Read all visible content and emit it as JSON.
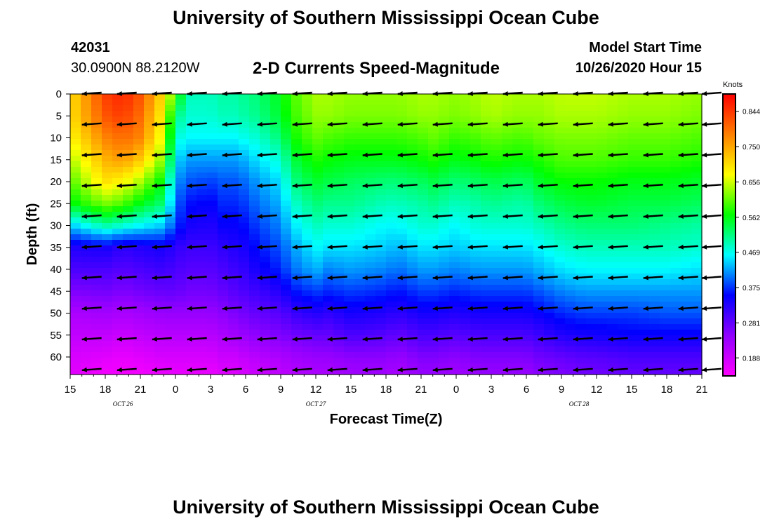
{
  "page": {
    "title_top": "University of Southern Mississippi Ocean Cube",
    "title_bottom": "University of Southern Mississippi Ocean Cube",
    "station_id": "42031",
    "station_coords": "30.0900N 88.2120W",
    "subtitle": "2-D Currents Speed-Magnitude",
    "model_start_label": "Model Start Time",
    "model_start_value": "10/26/2020 Hour 15"
  },
  "chart_data": {
    "type": "heatmap",
    "title": "2-D Currents Speed-Magnitude",
    "xlabel": "Forecast Time(Z)",
    "ylabel": "Depth (ft)",
    "x_tick_labels": [
      "15",
      "18",
      "21",
      "0",
      "3",
      "6",
      "9",
      "12",
      "15",
      "18",
      "21",
      "0",
      "3",
      "6",
      "9",
      "12",
      "15",
      "18",
      "21"
    ],
    "x_hours": [
      0,
      3,
      6,
      9,
      12,
      15,
      18,
      21,
      24,
      27,
      30,
      33,
      36,
      39,
      42,
      45,
      48,
      51,
      54
    ],
    "date_labels": [
      {
        "label": "OCT 26",
        "hour": 4.5
      },
      {
        "label": "OCT 27",
        "hour": 21
      },
      {
        "label": "OCT 28",
        "hour": 43.5
      }
    ],
    "y_ticks": [
      0,
      5,
      10,
      15,
      20,
      25,
      30,
      35,
      40,
      45,
      50,
      55,
      60
    ],
    "ylim": [
      0,
      64
    ],
    "colorbar": {
      "unit": "Knots",
      "min": 0.14,
      "max": 0.89,
      "tick_values": [
        0.844,
        0.75,
        0.656,
        0.562,
        0.469,
        0.375,
        0.281,
        0.188
      ],
      "tick_labels": [
        "0.844",
        "0.750",
        "0.656",
        "0.562",
        "0.469",
        "0.375",
        "0.281",
        "0.188"
      ],
      "colors": [
        "#ff00ff",
        "#9000ff",
        "#0000ff",
        "#00ffff",
        "#00ff00",
        "#ffff00",
        "#ff8000",
        "#ff0000"
      ]
    },
    "profile_hours": [
      0,
      3,
      4.5,
      6,
      8,
      9,
      10,
      12,
      13,
      14,
      15,
      16,
      18,
      19,
      21,
      22,
      24,
      27,
      28,
      30,
      31,
      33,
      35,
      36,
      38,
      39,
      40,
      42,
      44,
      45,
      48,
      51,
      54
    ],
    "profile_depths": [
      0,
      5,
      10,
      15,
      20,
      25,
      30,
      35,
      40,
      45,
      50,
      55,
      60,
      64
    ],
    "speed_profiles": [
      [
        0.7,
        0.7,
        0.68,
        0.64,
        0.6,
        0.56,
        0.44,
        0.33,
        0.3,
        0.26,
        0.22,
        0.2,
        0.18,
        0.17
      ],
      [
        0.84,
        0.82,
        0.78,
        0.74,
        0.7,
        0.62,
        0.5,
        0.34,
        0.3,
        0.27,
        0.23,
        0.2,
        0.17,
        0.15
      ],
      [
        0.86,
        0.84,
        0.8,
        0.76,
        0.68,
        0.6,
        0.48,
        0.32,
        0.29,
        0.26,
        0.22,
        0.19,
        0.16,
        0.15
      ],
      [
        0.82,
        0.8,
        0.78,
        0.72,
        0.64,
        0.56,
        0.46,
        0.33,
        0.3,
        0.27,
        0.23,
        0.2,
        0.17,
        0.15
      ],
      [
        0.7,
        0.68,
        0.66,
        0.62,
        0.56,
        0.52,
        0.44,
        0.34,
        0.31,
        0.28,
        0.24,
        0.21,
        0.18,
        0.16
      ],
      [
        0.6,
        0.52,
        0.48,
        0.45,
        0.42,
        0.4,
        0.38,
        0.32,
        0.3,
        0.28,
        0.24,
        0.21,
        0.18,
        0.16
      ],
      [
        0.49,
        0.48,
        0.46,
        0.42,
        0.39,
        0.36,
        0.34,
        0.31,
        0.29,
        0.27,
        0.24,
        0.21,
        0.18,
        0.16
      ],
      [
        0.49,
        0.48,
        0.46,
        0.42,
        0.38,
        0.35,
        0.33,
        0.31,
        0.29,
        0.27,
        0.24,
        0.21,
        0.18,
        0.16
      ],
      [
        0.5,
        0.49,
        0.46,
        0.42,
        0.39,
        0.37,
        0.35,
        0.32,
        0.3,
        0.28,
        0.25,
        0.22,
        0.19,
        0.17
      ],
      [
        0.5,
        0.49,
        0.46,
        0.42,
        0.39,
        0.37,
        0.35,
        0.33,
        0.31,
        0.29,
        0.26,
        0.23,
        0.19,
        0.17
      ],
      [
        0.51,
        0.5,
        0.47,
        0.43,
        0.4,
        0.38,
        0.36,
        0.34,
        0.32,
        0.3,
        0.27,
        0.24,
        0.2,
        0.18
      ],
      [
        0.52,
        0.51,
        0.48,
        0.45,
        0.42,
        0.4,
        0.38,
        0.36,
        0.34,
        0.31,
        0.28,
        0.25,
        0.21,
        0.19
      ],
      [
        0.56,
        0.55,
        0.52,
        0.48,
        0.45,
        0.43,
        0.41,
        0.39,
        0.37,
        0.33,
        0.29,
        0.26,
        0.22,
        0.2
      ],
      [
        0.6,
        0.59,
        0.57,
        0.54,
        0.51,
        0.48,
        0.45,
        0.42,
        0.4,
        0.36,
        0.31,
        0.27,
        0.23,
        0.21
      ],
      [
        0.64,
        0.63,
        0.61,
        0.58,
        0.55,
        0.52,
        0.49,
        0.46,
        0.43,
        0.38,
        0.33,
        0.28,
        0.24,
        0.22
      ],
      [
        0.64,
        0.63,
        0.6,
        0.57,
        0.54,
        0.51,
        0.48,
        0.45,
        0.41,
        0.37,
        0.32,
        0.28,
        0.24,
        0.22
      ],
      [
        0.63,
        0.62,
        0.59,
        0.56,
        0.53,
        0.51,
        0.48,
        0.45,
        0.42,
        0.38,
        0.34,
        0.3,
        0.25,
        0.23
      ],
      [
        0.63,
        0.62,
        0.59,
        0.56,
        0.52,
        0.49,
        0.46,
        0.44,
        0.41,
        0.37,
        0.33,
        0.29,
        0.25,
        0.23
      ],
      [
        0.63,
        0.62,
        0.59,
        0.56,
        0.52,
        0.49,
        0.46,
        0.43,
        0.4,
        0.36,
        0.32,
        0.28,
        0.24,
        0.22
      ],
      [
        0.64,
        0.63,
        0.6,
        0.57,
        0.53,
        0.5,
        0.48,
        0.45,
        0.42,
        0.38,
        0.34,
        0.3,
        0.26,
        0.24
      ],
      [
        0.64,
        0.63,
        0.61,
        0.58,
        0.54,
        0.51,
        0.48,
        0.45,
        0.42,
        0.38,
        0.34,
        0.3,
        0.26,
        0.24
      ],
      [
        0.63,
        0.62,
        0.59,
        0.56,
        0.52,
        0.49,
        0.46,
        0.44,
        0.41,
        0.37,
        0.33,
        0.29,
        0.25,
        0.23
      ],
      [
        0.64,
        0.63,
        0.6,
        0.57,
        0.53,
        0.5,
        0.48,
        0.45,
        0.42,
        0.38,
        0.34,
        0.3,
        0.26,
        0.24
      ],
      [
        0.65,
        0.64,
        0.61,
        0.58,
        0.54,
        0.51,
        0.48,
        0.45,
        0.42,
        0.38,
        0.34,
        0.3,
        0.26,
        0.24
      ],
      [
        0.64,
        0.63,
        0.6,
        0.57,
        0.53,
        0.5,
        0.48,
        0.45,
        0.42,
        0.38,
        0.34,
        0.3,
        0.26,
        0.24
      ],
      [
        0.64,
        0.63,
        0.6,
        0.57,
        0.53,
        0.5,
        0.48,
        0.45,
        0.42,
        0.38,
        0.34,
        0.3,
        0.26,
        0.24
      ],
      [
        0.64,
        0.63,
        0.61,
        0.58,
        0.55,
        0.52,
        0.49,
        0.46,
        0.43,
        0.39,
        0.35,
        0.31,
        0.27,
        0.25
      ],
      [
        0.65,
        0.64,
        0.62,
        0.6,
        0.57,
        0.54,
        0.51,
        0.48,
        0.45,
        0.41,
        0.37,
        0.33,
        0.28,
        0.26
      ],
      [
        0.65,
        0.64,
        0.62,
        0.6,
        0.57,
        0.55,
        0.52,
        0.49,
        0.46,
        0.42,
        0.38,
        0.34,
        0.29,
        0.27
      ],
      [
        0.65,
        0.64,
        0.62,
        0.6,
        0.57,
        0.55,
        0.52,
        0.49,
        0.46,
        0.42,
        0.38,
        0.34,
        0.29,
        0.27
      ],
      [
        0.64,
        0.63,
        0.61,
        0.59,
        0.56,
        0.54,
        0.52,
        0.49,
        0.46,
        0.42,
        0.38,
        0.35,
        0.3,
        0.28
      ],
      [
        0.64,
        0.63,
        0.61,
        0.59,
        0.56,
        0.54,
        0.51,
        0.49,
        0.46,
        0.42,
        0.39,
        0.35,
        0.3,
        0.28
      ],
      [
        0.63,
        0.62,
        0.6,
        0.58,
        0.55,
        0.53,
        0.5,
        0.48,
        0.45,
        0.42,
        0.39,
        0.35,
        0.3,
        0.28
      ]
    ],
    "vector_hours": [
      1,
      4,
      7,
      10,
      13,
      16,
      19,
      22,
      25,
      28,
      31,
      34,
      37,
      40,
      43,
      46,
      49,
      52,
      54
    ],
    "vector_depths": [
      0,
      7,
      14,
      21,
      28,
      35,
      42,
      49,
      56,
      63
    ],
    "vector_bearing_deg": 180
  }
}
